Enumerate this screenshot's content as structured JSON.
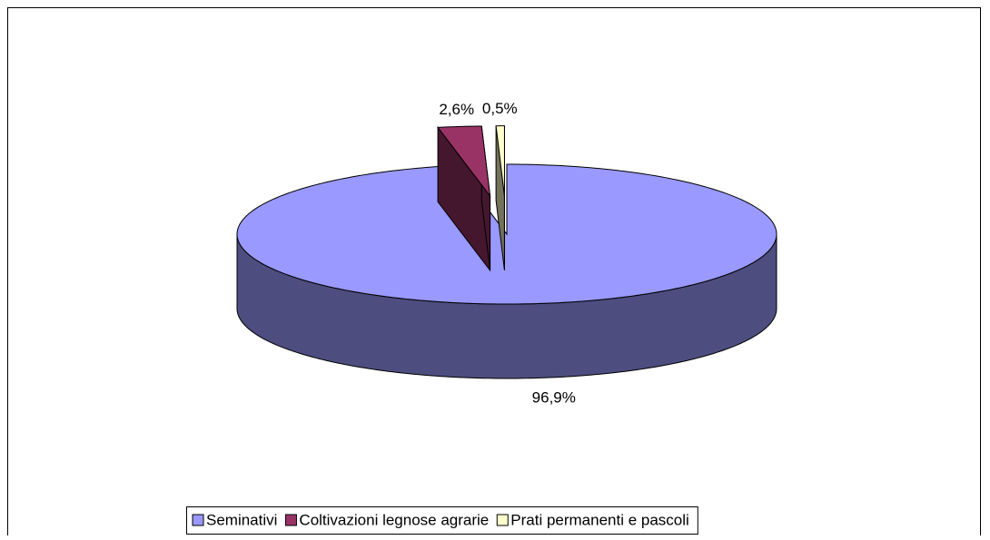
{
  "chart_data": {
    "type": "pie3d",
    "categories": [
      "Seminativi",
      "Coltivazioni legnose agrarie",
      "Prati permanenti e pascoli"
    ],
    "values": [
      96.9,
      2.6,
      0.5
    ],
    "value_labels": [
      "96,9%",
      "2,6%",
      "0,5%"
    ],
    "colors": [
      "#9999ff",
      "#993366",
      "#ffffcc"
    ],
    "exploded": [
      false,
      true,
      true
    ],
    "legend": "bottom"
  }
}
